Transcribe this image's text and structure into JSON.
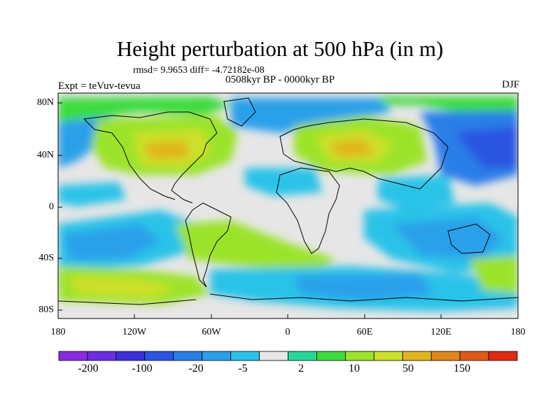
{
  "title": "Height perturbation at 500 hPa (in m)",
  "stats_line": "rmsd= 9.9653 diff= -4.72182e-08",
  "period": "0508kyr BP - 0000kyr BP",
  "experiment": "Expt = teVuv-tevua",
  "season": "DJF",
  "lat_ticks": [
    "80N",
    "40N",
    "0",
    "40S",
    "80S"
  ],
  "lon_ticks": [
    "180",
    "120W",
    "60W",
    "0",
    "60E",
    "120E",
    "180"
  ],
  "colorbar": {
    "labels": [
      "-200",
      "-100",
      "-20",
      "-5",
      "2",
      "10",
      "50",
      "150"
    ],
    "colors": [
      "#8a2be2",
      "#6a2ee0",
      "#3a2fd8",
      "#2a55e0",
      "#2a7ee8",
      "#2aa0ea",
      "#29c3e8",
      "#e6e6e6",
      "#27d79a",
      "#3ddb3d",
      "#9be32c",
      "#cde02a",
      "#e0b51f",
      "#e0871c",
      "#e05a18",
      "#e02a14"
    ]
  },
  "colors": {
    "ocean_land_neutral": "#e6e6e6",
    "coastline": "#000000"
  }
}
